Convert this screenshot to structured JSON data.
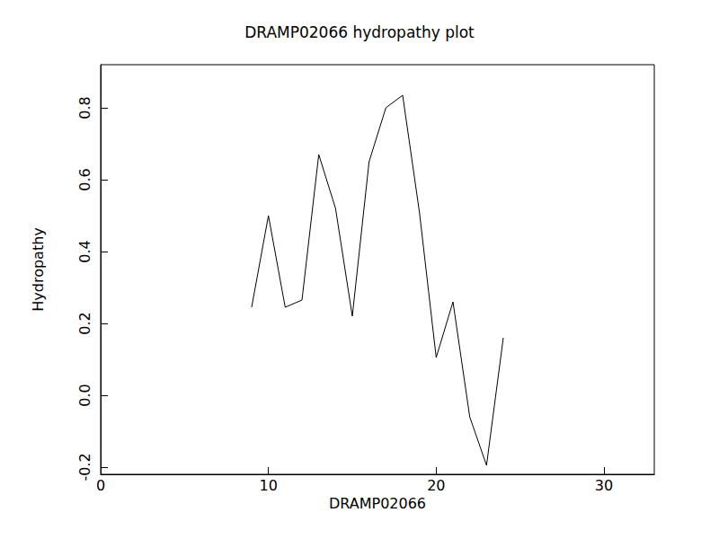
{
  "chart_data": {
    "type": "line",
    "title": "DRAMP02066 hydropathy plot",
    "x_label": "DRAMP02066",
    "y_label": "Hydropathy",
    "x": [
      9,
      10,
      11,
      12,
      13,
      14,
      15,
      16,
      17,
      18,
      19,
      20,
      21,
      22,
      23,
      24
    ],
    "values": [
      0.245,
      0.5,
      0.245,
      0.265,
      0.67,
      0.52,
      0.22,
      0.65,
      0.8,
      0.835,
      0.51,
      0.105,
      0.26,
      -0.06,
      -0.195,
      0.16
    ],
    "color": "#000000",
    "xlim": [
      0,
      33
    ],
    "xticks": [
      0,
      10,
      20,
      30
    ],
    "ylim": [
      -0.22,
      0.92
    ],
    "yticks": [
      -0.2,
      {
        "value": 0,
        "label": "0.0"
      },
      0.2,
      0.4,
      0.6,
      0.8
    ],
    "grid": false
  }
}
